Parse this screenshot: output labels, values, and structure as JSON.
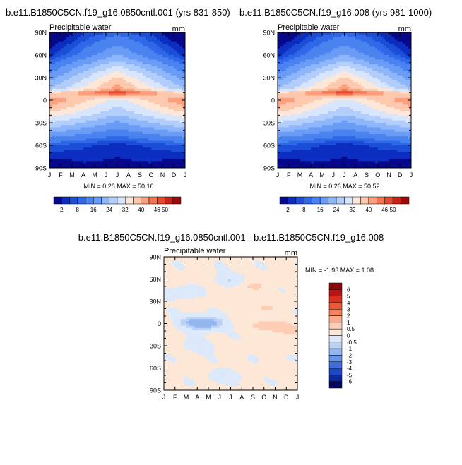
{
  "chart_data": [
    {
      "type": "heatmap",
      "title": "b.e11.B1850C5CN.f19_g16.0850cntl.001 (yrs 831-850)",
      "subtitle": "Precipitable water",
      "units": "mm",
      "x_ticks": [
        "J",
        "F",
        "M",
        "A",
        "M",
        "J",
        "J",
        "A",
        "S",
        "O",
        "N",
        "D",
        "J"
      ],
      "y_ticks": [
        "90N",
        "60N",
        "30N",
        "0",
        "30S",
        "60S",
        "90S"
      ],
      "stats": "MIN =   0.28 MAX =  50.16",
      "colorbar_labels": [
        "2",
        "8",
        "16",
        "24",
        "32",
        "40",
        "46",
        "50"
      ],
      "colorbar_colors": [
        "#08088a",
        "#0c2ec0",
        "#1b4fd8",
        "#2f68e8",
        "#4a82f0",
        "#6a9cf6",
        "#8eb6fa",
        "#b4cefc",
        "#d8e6fd",
        "#fde7d8",
        "#fcc8ae",
        "#f9a07e",
        "#f27550",
        "#e44a2e",
        "#c92318",
        "#9a0c0c"
      ],
      "cbar_edges": [
        0,
        2,
        4,
        6,
        8,
        12,
        16,
        20,
        24,
        28,
        32,
        36,
        40,
        43,
        46,
        50
      ],
      "data": {
        "lat_rows": [
          -90,
          -60,
          -30,
          -15,
          0,
          10,
          15,
          30,
          60,
          90
        ],
        "months": [
          1,
          7,
          13
        ],
        "values": [
          [
            1.5,
            1.0,
            1.5
          ],
          [
            6,
            3,
            6
          ],
          [
            24,
            15,
            24
          ],
          [
            33,
            22,
            33
          ],
          [
            40,
            26,
            40
          ],
          [
            30,
            46,
            30
          ],
          [
            20,
            38,
            20
          ],
          [
            14,
            33,
            14
          ],
          [
            3,
            16,
            3
          ],
          [
            0.5,
            7,
            0.5
          ]
        ]
      }
    },
    {
      "type": "heatmap",
      "title": "b.e11.B1850C5CN.f19_g16.008 (yrs 981-1000)",
      "subtitle": "Precipitable water",
      "units": "mm",
      "x_ticks": [
        "J",
        "F",
        "M",
        "A",
        "M",
        "J",
        "J",
        "A",
        "S",
        "O",
        "N",
        "D",
        "J"
      ],
      "y_ticks": [
        "90N",
        "60N",
        "30N",
        "0",
        "30S",
        "60S",
        "90S"
      ],
      "stats": "MIN =   0.26 MAX =  50.52",
      "colorbar_labels": [
        "2",
        "8",
        "16",
        "24",
        "32",
        "40",
        "46",
        "50"
      ],
      "colorbar_colors": [
        "#08088a",
        "#0c2ec0",
        "#1b4fd8",
        "#2f68e8",
        "#4a82f0",
        "#6a9cf6",
        "#8eb6fa",
        "#b4cefc",
        "#d8e6fd",
        "#fde7d8",
        "#fcc8ae",
        "#f9a07e",
        "#f27550",
        "#e44a2e",
        "#c92318",
        "#9a0c0c"
      ],
      "cbar_edges": [
        0,
        2,
        4,
        6,
        8,
        12,
        16,
        20,
        24,
        28,
        32,
        36,
        40,
        43,
        46,
        50
      ],
      "data": {
        "lat_rows": [
          -90,
          -60,
          -30,
          -15,
          0,
          10,
          15,
          30,
          60,
          90
        ],
        "months": [
          1,
          7,
          13
        ],
        "values": [
          [
            1.5,
            1.0,
            1.5
          ],
          [
            6,
            3,
            6
          ],
          [
            24,
            15,
            24
          ],
          [
            33,
            22,
            33
          ],
          [
            40,
            26,
            40
          ],
          [
            30,
            46,
            30
          ],
          [
            20,
            38,
            20
          ],
          [
            14,
            33,
            14
          ],
          [
            3,
            16,
            3
          ],
          [
            0.5,
            7,
            0.5
          ]
        ]
      }
    },
    {
      "type": "heatmap",
      "title": "b.e11.B1850C5CN.f19_g16.0850cntl.001 - b.e11.B1850C5CN.f19_g16.008",
      "subtitle": "Precipitable water",
      "units": "mm",
      "x_ticks": [
        "J",
        "F",
        "M",
        "A",
        "M",
        "J",
        "J",
        "A",
        "S",
        "O",
        "N",
        "D",
        "J"
      ],
      "y_ticks": [
        "90N",
        "60N",
        "30N",
        "0",
        "30S",
        "60S",
        "90S"
      ],
      "stats": "MIN =  -1.93 MAX =   1.08",
      "colorbar_labels": [
        "6",
        "5",
        "4",
        "3",
        "2",
        "1",
        "0.5",
        "0",
        "-0.5",
        "-1",
        "-2",
        "-3",
        "-4",
        "-5",
        "-6"
      ],
      "colorbar_colors": [
        "#8a0a0a",
        "#b81414",
        "#d8301c",
        "#ea5a34",
        "#f5845e",
        "#fbab8c",
        "#fdcdb5",
        "#fde8d8",
        "#dce9fa",
        "#bcd3f6",
        "#94b6ef",
        "#6a94e6",
        "#3f6ddc",
        "#1f48c8",
        "#0c2a9c",
        "#040860"
      ],
      "anomaly_blobs": [
        {
          "month": 4.8,
          "lat": 0,
          "value": -1.8
        },
        {
          "month": 3.5,
          "lat": 2,
          "value": -0.8
        },
        {
          "month": 10.5,
          "lat": -3,
          "value": 0.9
        },
        {
          "month": 12.5,
          "lat": -10,
          "value": 0.6
        },
        {
          "month": 7.0,
          "lat": 60,
          "value": -0.6
        },
        {
          "month": 2.5,
          "lat": 40,
          "value": -0.5
        },
        {
          "month": 9.0,
          "lat": 50,
          "value": 0.5
        },
        {
          "month": 10.0,
          "lat": 20,
          "value": 0.5
        },
        {
          "month": 4.0,
          "lat": -30,
          "value": -0.5
        },
        {
          "month": 6.5,
          "lat": -70,
          "value": -0.5
        }
      ]
    }
  ]
}
